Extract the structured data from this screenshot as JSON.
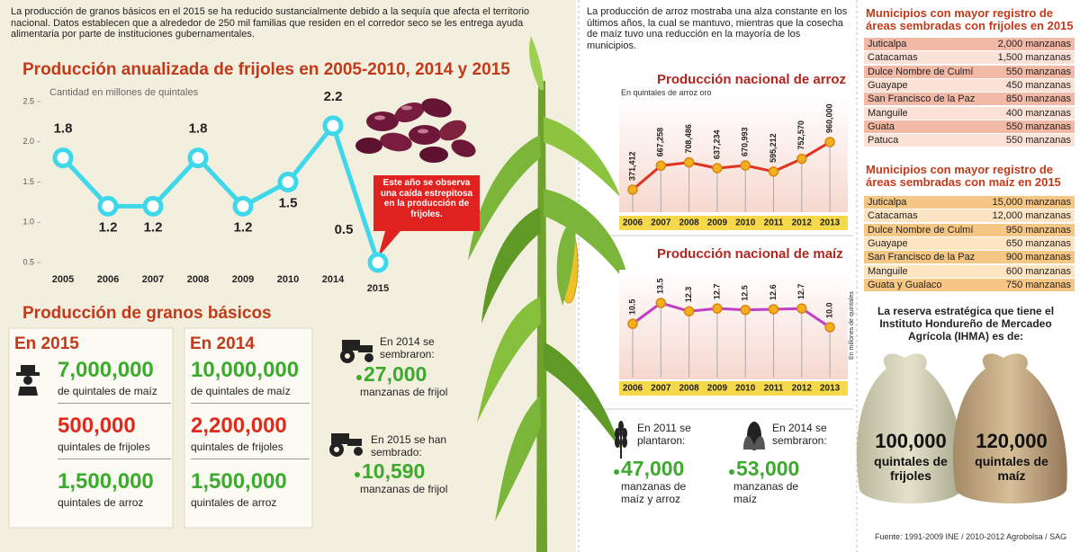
{
  "intro_left": "La producción de granos básicos en el 2015 se ha reducido sustancialmente debido a la sequía que afecta el territorio nacional. Datos establecen que a alrededor de 250 mil familias que residen en el corredor seco se les entrega ayuda alimentaria por parte de instituciones gubernamentales.",
  "intro_middle": "La producción de arroz mostraba una alza constante en los últimos años, la cual se mantuvo, mientras que la cosecha de maíz tuvo una reducción en la mayoría de los municipios.",
  "chart_data": [
    {
      "type": "line",
      "title": "Producción anualizada de frijoles en 2005-2010, 2014 y 2015",
      "y_label": "Cantidad en millones de quintales",
      "categories": [
        "2005",
        "2006",
        "2007",
        "2008",
        "2009",
        "2010",
        "2014",
        "2015"
      ],
      "values": [
        1.8,
        1.2,
        1.2,
        1.8,
        1.2,
        1.5,
        2.2,
        0.5
      ],
      "color": "#3fd7ea",
      "ylim": [
        0.5,
        2.5
      ],
      "yticks": [
        0.5,
        {
          "value": 1.0,
          "label": "1.0"
        },
        1.5,
        {
          "value": 2.0,
          "label": "2.0"
        },
        2.5
      ],
      "annotation": "Este año se observa una caída estrepitosa en la producción de frijoles."
    },
    {
      "type": "line",
      "title": "Producción nacional de arroz",
      "subtitle": "En quintales de arroz oro",
      "categories": [
        "2006",
        "2007",
        "2008",
        "2009",
        "2010",
        "2011",
        "2012",
        "2013"
      ],
      "values": [
        371412,
        667258,
        708486,
        637234,
        670993,
        595212,
        752570,
        960000
      ],
      "value_labels": [
        "371,412",
        "667,258",
        "708,486",
        "637,234",
        "670,993",
        "595,212",
        "752,570",
        "960,000"
      ],
      "color": "#e0321e"
    },
    {
      "type": "line",
      "title": "Producción nacional de maíz",
      "y_label": "En millones de quintales",
      "categories": [
        "2006",
        "2007",
        "2008",
        "2009",
        "2010",
        "2011",
        "2012",
        "2013"
      ],
      "values": [
        10.5,
        13.5,
        12.3,
        12.7,
        12.5,
        12.6,
        12.7,
        10.0
      ],
      "value_labels": [
        "10.5",
        "13.5",
        "12.3",
        "12.7",
        "12.5",
        "12.6",
        "12.7",
        "10.0"
      ],
      "color": "#c23fc6"
    }
  ],
  "granos": {
    "title": "Producción de granos básicos",
    "years": [
      {
        "label": "En 2015",
        "items": [
          {
            "value": "7,000,000",
            "label": "de quintales de maíz"
          },
          {
            "value": "500,000",
            "label": "quintales de frijoles"
          },
          {
            "value": "1,500,000",
            "label": "quintales de arroz"
          }
        ]
      },
      {
        "label": "En 2014",
        "items": [
          {
            "value": "10,000,000",
            "label": "de quintales de maíz"
          },
          {
            "value": "2,200,000",
            "label": "quintales de frijoles"
          },
          {
            "value": "1,500,000",
            "label": "quintales de arroz"
          }
        ]
      }
    ]
  },
  "siembra_frijol": [
    {
      "text": "En 2014 se sembraron:",
      "value": "27,000",
      "label": "manzanas de frijol"
    },
    {
      "text": "En 2015 se han sembrado:",
      "value": "10,590",
      "label": "manzanas de frijol"
    }
  ],
  "siembra_maiz": [
    {
      "text": "En 2011 se plantaron:",
      "value": "47,000",
      "label": "manzanas de maíz y arroz"
    },
    {
      "text": "En 2014 se sembraron:",
      "value": "53,000",
      "label": "manzanas de maíz"
    }
  ],
  "tablas": [
    {
      "title": "Municipios con mayor registro de áreas sembradas con frijoles en 2015",
      "rows": [
        [
          "Juticalpa",
          "2,000 manzanas"
        ],
        [
          "Catacamas",
          "1,500 manzanas"
        ],
        [
          "Dulce Nombre de Culmí",
          "550 manzanas"
        ],
        [
          "Guayape",
          "450 manzanas"
        ],
        [
          "San Francisco de la Paz",
          "850 manzanas"
        ],
        [
          "Manguile",
          "400 manzanas"
        ],
        [
          "Guata",
          "550 manzanas"
        ],
        [
          "Patuca",
          "550 manzanas"
        ]
      ]
    },
    {
      "title": "Municipios con mayor registro de áreas sembradas con maíz en 2015",
      "rows": [
        [
          "Juticalpa",
          "15,000 manzanas"
        ],
        [
          "Catacamas",
          "12,000 manzanas"
        ],
        [
          "Dulce Nombre de Culmí",
          "950 manzanas"
        ],
        [
          "Guayape",
          "650 manzanas"
        ],
        [
          "San Francisco de la Paz",
          "900 manzanas"
        ],
        [
          "Manguile",
          "600 manzanas"
        ],
        [
          "Guata y Gualaco",
          "750 manzanas"
        ]
      ]
    }
  ],
  "reserva": {
    "text": "La reserva estratégica que tiene el Instituto Hondureño de Mercadeo Agrícola (IHMA) es de:",
    "items": [
      {
        "value": "100,000",
        "label": "quintales de frijoles"
      },
      {
        "value": "120,000",
        "label": "quintales de maíz"
      }
    ]
  },
  "source": "Fuente: 1991-2009 INE / 2010-2012 Agrobolsa / SAG"
}
